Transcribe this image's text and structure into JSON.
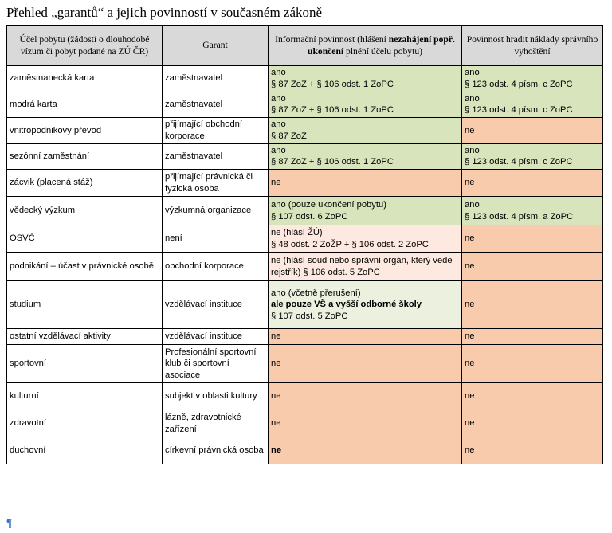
{
  "title": "Přehled „garantů“ a jejich povinností v současném zákoně",
  "headers": {
    "col1": "Účel pobytu (žádosti o dlouhodobé vízum či pobyt podané na ZÚ ČR)",
    "col2": "Garant",
    "col3_a": "Informační povinnost (hlášení ",
    "col3_b": "nezahájení popř. ukončení",
    "col3_c": " plnění účelu pobytu)",
    "col4": "Povinnost hradit náklady správního vyhoštění"
  },
  "rows": [
    {
      "purpose": "zaměstnanecká karta",
      "guarantor": "zaměstnavatel",
      "info": [
        "ano",
        "§ 87 ZoZ + § 106 odst. 1 ZoPC"
      ],
      "cost": [
        "ano",
        "§ 123 odst. 4 písm. c ZoPC"
      ]
    },
    {
      "purpose": "modrá karta",
      "guarantor": "zaměstnavatel",
      "info": [
        "ano",
        "§ 87 ZoZ + § 106 odst. 1 ZoPC"
      ],
      "cost": [
        "ano",
        "§ 123 odst. 4 písm. c ZoPC"
      ]
    },
    {
      "purpose": "vnitropodnikový převod",
      "guarantor": "přijímající obchodní korporace",
      "info": [
        "ano",
        "§ 87 ZoZ"
      ],
      "cost": [
        "ne"
      ]
    },
    {
      "purpose": "sezónní zaměstnání",
      "guarantor": "zaměstnavatel",
      "info": [
        "ano",
        "§ 87 ZoZ + § 106 odst. 1 ZoPC"
      ],
      "cost": [
        "ano",
        "§ 123 odst. 4 písm. c ZoPC"
      ]
    },
    {
      "purpose": "zácvik (placená stáž)",
      "guarantor": "přijímající právnická či fyzická osoba",
      "info": [
        "ne"
      ],
      "cost": [
        "ne"
      ]
    },
    {
      "purpose": "vědecký výzkum",
      "guarantor": "výzkumná organizace",
      "info": [
        "ano (pouze ukončení pobytu)",
        "§ 107 odst. 6 ZoPC"
      ],
      "cost": [
        "ano",
        "§ 123 odst. 4 písm. a ZoPC"
      ]
    },
    {
      "purpose": "OSVČ",
      "guarantor": "není",
      "info": [
        "ne (hlásí ŽÚ)",
        "§ 48 odst. 2 ZoŽP + § 106 odst. 2 ZoPC"
      ],
      "cost": [
        "ne"
      ]
    },
    {
      "purpose": "podnikání – účast v právnické osobě",
      "guarantor": "obchodní korporace",
      "info": [
        "ne (hlásí soud nebo správní orgán, který vede rejstřík) § 106 odst. 5 ZoPC"
      ],
      "cost": [
        "ne"
      ]
    },
    {
      "purpose": "studium",
      "guarantor": "vzdělávací instituce",
      "info": [
        "ano (včetně přerušení)",
        "ale pouze VŠ a vyšší odborné školy",
        "§ 107 odst. 5 ZoPC"
      ],
      "cost": [
        "ne"
      ]
    },
    {
      "purpose": "ostatní vzdělávací aktivity",
      "guarantor": "vzdělávací instituce",
      "info": [
        "ne"
      ],
      "cost": [
        "ne"
      ]
    },
    {
      "purpose": "sportovní",
      "guarantor": "Profesionální sportovní klub či sportovní asociace",
      "info": [
        "ne"
      ],
      "cost": [
        "ne"
      ]
    },
    {
      "purpose": "kulturní",
      "guarantor": "subjekt v oblasti kultury",
      "info": [
        "ne"
      ],
      "cost": [
        "ne"
      ]
    },
    {
      "purpose": "zdravotní",
      "guarantor": "lázně, zdravotnické zařízení",
      "info": [
        "ne"
      ],
      "cost": [
        "ne"
      ]
    },
    {
      "purpose": "duchovní",
      "guarantor": "církevní právnická osoba",
      "info": [
        "ne"
      ],
      "cost": [
        "ne"
      ]
    }
  ],
  "pilcrow": "¶",
  "colors": {
    "green": "#d8e4bc",
    "orange": "#f8cbad",
    "header": "#d9d9d9"
  }
}
